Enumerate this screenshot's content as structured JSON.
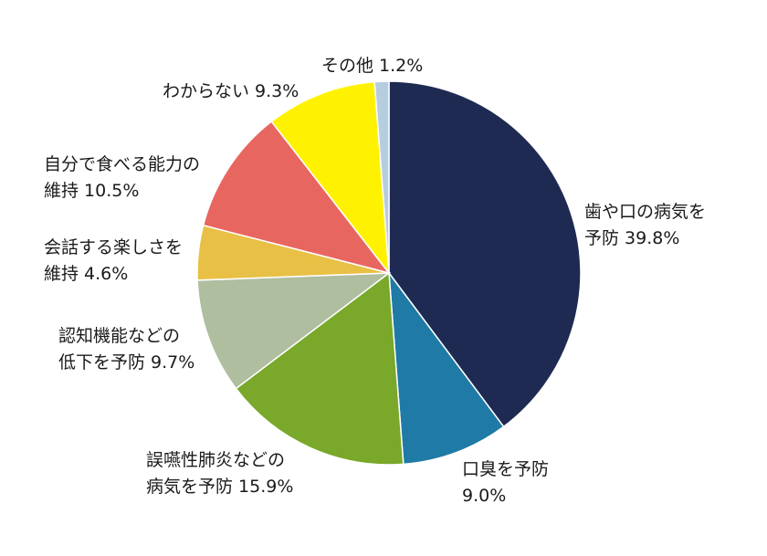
{
  "chart_data": {
    "type": "pie",
    "title": "",
    "start_angle_deg": 0,
    "direction": "clockwise",
    "slices": [
      {
        "name": "歯や口の病気を予防",
        "value": 39.8,
        "color": "#1e2a52",
        "label": [
          "歯や口の病気を",
          "予防 39.8%"
        ]
      },
      {
        "name": "口臭を予防",
        "value": 9.0,
        "color": "#1f7aa6",
        "label": [
          "口臭を予防",
          "9.0%"
        ]
      },
      {
        "name": "誤嚥性肺炎などの病気を予防",
        "value": 15.9,
        "color": "#79a82a",
        "label": [
          "誤嚥性肺炎などの",
          "病気を予防 15.9%"
        ]
      },
      {
        "name": "認知機能などの低下を予防",
        "value": 9.7,
        "color": "#b0bea0",
        "label": [
          "認知機能などの",
          "低下を予防 9.7%"
        ]
      },
      {
        "name": "会話する楽しさを維持",
        "value": 4.6,
        "color": "#e8c046",
        "label": [
          "会話する楽しさを",
          "維持 4.6%"
        ]
      },
      {
        "name": "自分で食べる能力の維持",
        "value": 10.5,
        "color": "#e86660",
        "label": [
          "自分で食べる能力の",
          "維持 10.5%"
        ]
      },
      {
        "name": "わからない",
        "value": 9.3,
        "color": "#fff200",
        "label": [
          "わからない 9.3%"
        ]
      },
      {
        "name": "その他",
        "value": 1.2,
        "color": "#b6cde0",
        "label": [
          "その他 1.2%"
        ]
      }
    ]
  }
}
